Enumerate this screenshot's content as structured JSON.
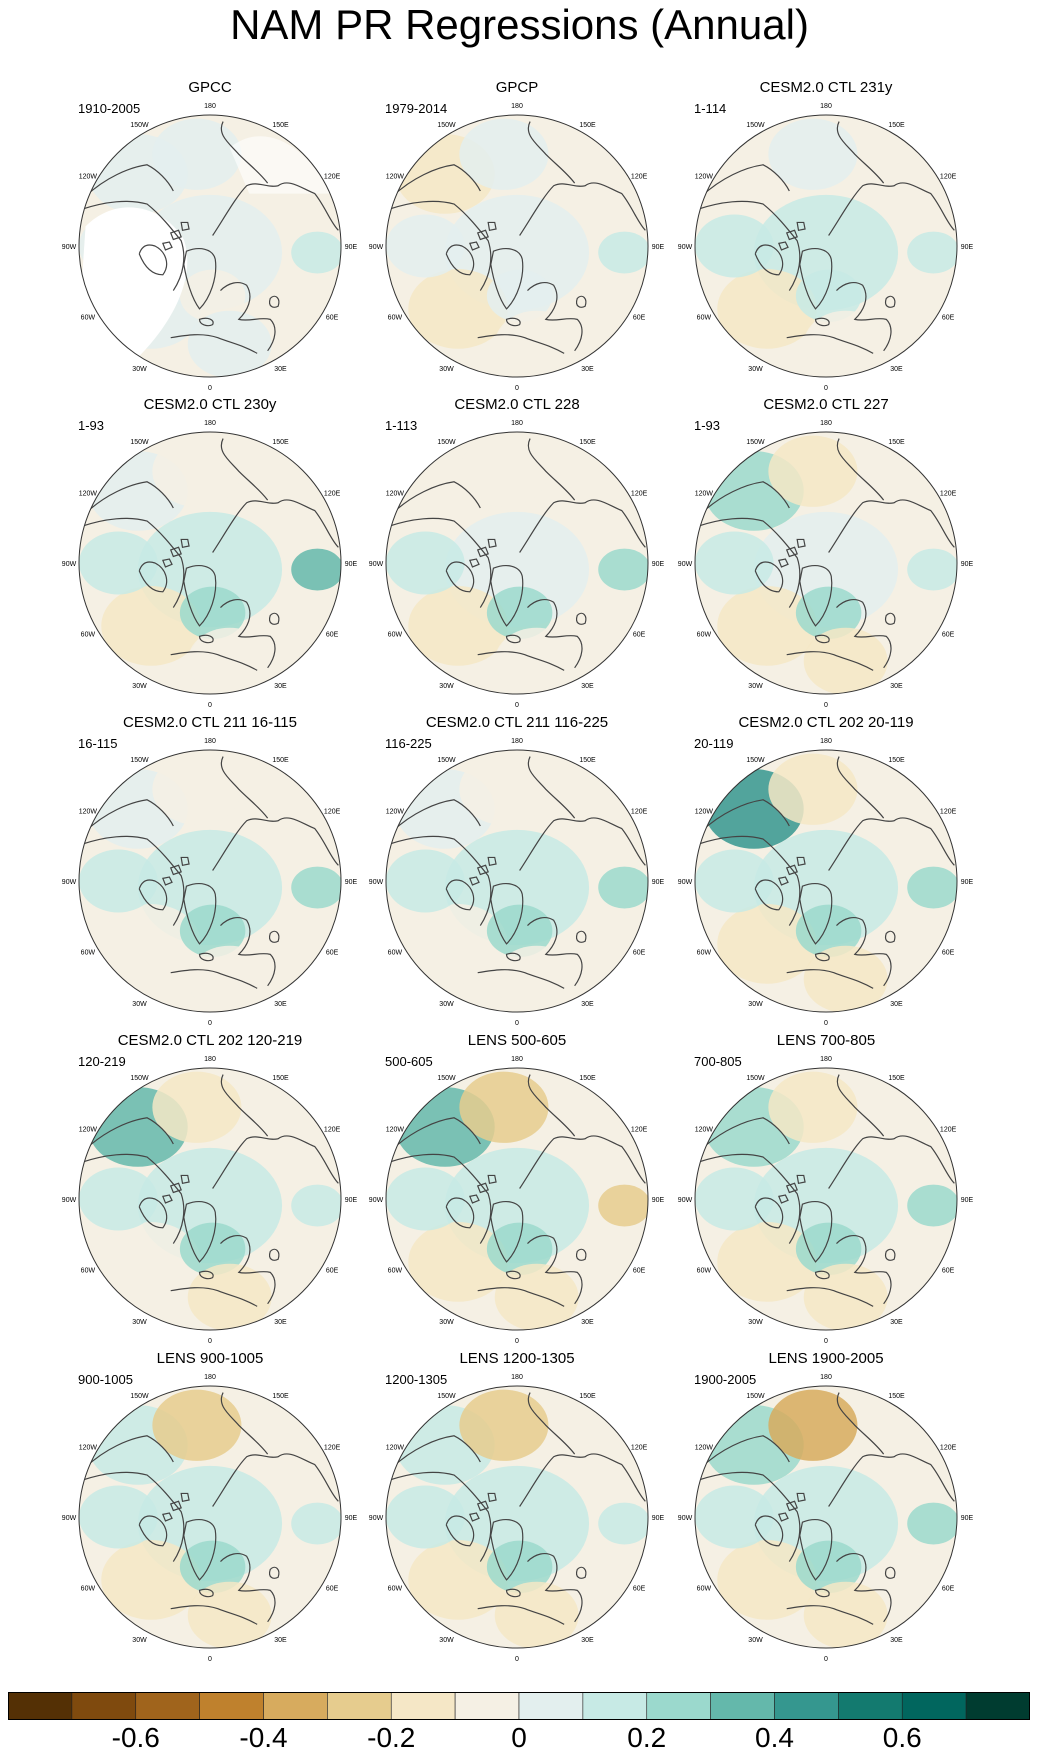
{
  "title": "NAM PR Regressions (Annual)",
  "lon_labels": [
    "180",
    "150E",
    "120E",
    "90E",
    "60E",
    "30E",
    "0",
    "30W",
    "60W",
    "90W",
    "120W",
    "150W"
  ],
  "panels": [
    {
      "title": "GPCC",
      "period": "1910-2005",
      "pattern": [
        0,
        0.08,
        0.02,
        0.1,
        0.05,
        -0.08,
        0.05,
        0.04
      ],
      "land_missing": true
    },
    {
      "title": "GPCP",
      "period": "1979-2014",
      "pattern": [
        -0.12,
        0.06,
        0.05,
        0.12,
        -0.15,
        0.04,
        -0.1,
        0.08
      ],
      "land_missing": false
    },
    {
      "title": "CESM2.0 CTL 231y",
      "period": "1-114",
      "pattern": [
        -0.1,
        0.08,
        0.12,
        0.18,
        -0.12,
        0.14,
        -0.1,
        0.1
      ],
      "land_missing": false
    },
    {
      "title": "CESM2.0 CTL 230y",
      "period": "1-93",
      "pattern": [
        0.08,
        -0.08,
        0.1,
        0.35,
        -0.2,
        0.3,
        -0.1,
        0.1
      ],
      "land_missing": false
    },
    {
      "title": "CESM2.0 CTL 228",
      "period": "1-113",
      "pattern": [
        -0.06,
        -0.05,
        0.06,
        0.28,
        -0.15,
        0.25,
        -0.1,
        0.1
      ],
      "land_missing": false
    },
    {
      "title": "CESM2.0 CTL 227",
      "period": "1-93",
      "pattern": [
        0.3,
        -0.12,
        0.08,
        0.15,
        -0.12,
        0.28,
        -0.12,
        0.12
      ],
      "land_missing": false
    },
    {
      "title": "CESM2.0 CTL 211 16-115",
      "period": "16-115",
      "pattern": [
        0.05,
        -0.1,
        0.12,
        0.22,
        -0.08,
        0.25,
        -0.1,
        0.1
      ],
      "land_missing": false
    },
    {
      "title": "CESM2.0 CTL 211 116-225",
      "period": "116-225",
      "pattern": [
        0.06,
        -0.08,
        0.1,
        0.25,
        -0.1,
        0.2,
        -0.1,
        0.1
      ],
      "land_missing": false
    },
    {
      "title": "CESM2.0 CTL 202 20-119",
      "period": "20-119",
      "pattern": [
        0.45,
        -0.2,
        0.12,
        0.2,
        -0.15,
        0.25,
        -0.15,
        0.12
      ],
      "land_missing": false
    },
    {
      "title": "CESM2.0 CTL 202 120-219",
      "period": "120-219",
      "pattern": [
        0.35,
        -0.12,
        0.1,
        0.18,
        -0.1,
        0.2,
        -0.18,
        0.1
      ],
      "land_missing": false
    },
    {
      "title": "LENS 500-605",
      "period": "500-605",
      "pattern": [
        0.35,
        -0.3,
        0.1,
        -0.25,
        -0.15,
        0.2,
        -0.12,
        0.12
      ],
      "land_missing": false
    },
    {
      "title": "LENS 700-805",
      "period": "700-805",
      "pattern": [
        0.3,
        -0.2,
        0.12,
        0.28,
        -0.15,
        0.22,
        -0.12,
        0.1
      ],
      "land_missing": false
    },
    {
      "title": "LENS 900-1005",
      "period": "900-1005",
      "pattern": [
        0.18,
        -0.3,
        0.1,
        0.15,
        -0.12,
        0.2,
        -0.12,
        0.1
      ],
      "land_missing": false
    },
    {
      "title": "LENS 1200-1305",
      "period": "1200-1305",
      "pattern": [
        0.12,
        -0.3,
        0.1,
        0.18,
        -0.12,
        0.22,
        -0.12,
        0.1
      ],
      "land_missing": false
    },
    {
      "title": "LENS 1900-2005",
      "period": "1900-2005",
      "pattern": [
        0.2,
        -0.4,
        0.1,
        0.2,
        -0.12,
        0.25,
        -0.12,
        0.12
      ],
      "land_missing": false
    }
  ],
  "colorbar": {
    "colors": [
      "#543005",
      "#7f4a0e",
      "#a0641c",
      "#bf812d",
      "#d7ab5e",
      "#e6cc8e",
      "#f5e7c6",
      "#f5f0e4",
      "#e3efee",
      "#c7eae5",
      "#9bd9cd",
      "#64b8ab",
      "#35978f",
      "#137a6f",
      "#01665e",
      "#003c30"
    ],
    "labels": [
      "-0.6",
      "-0.4",
      "-0.2",
      "0",
      "0.2",
      "0.4",
      "0.6"
    ]
  }
}
